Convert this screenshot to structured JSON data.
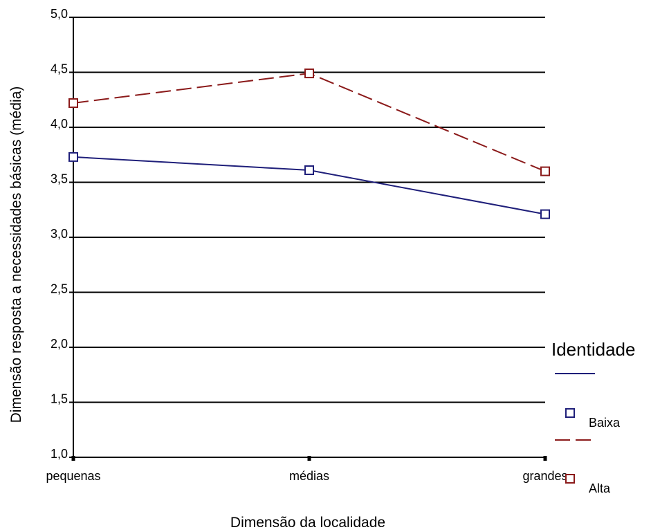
{
  "chart_data": {
    "type": "line",
    "xlabel": "Dimensão da localidade",
    "ylabel": "Dimensão resposta a necessidades básicas (média)",
    "categories": [
      "pequenas",
      "médias",
      "grandes"
    ],
    "ylim": [
      1.0,
      5.0
    ],
    "yticks": [
      1.0,
      1.5,
      2.0,
      2.5,
      3.0,
      3.5,
      4.0,
      4.5,
      5.0
    ],
    "ytick_labels": [
      "1,0",
      "1,5",
      "2,0",
      "2,5",
      "3,0",
      "3,5",
      "4,0",
      "4,5",
      "5,0"
    ],
    "grid": true,
    "legend": {
      "title": "Identidade",
      "placement": "right"
    },
    "series": [
      {
        "name": "Baixa",
        "values": [
          3.73,
          3.61,
          3.21
        ],
        "color": "#1f1f7a",
        "dash": "solid",
        "marker": "square"
      },
      {
        "name": "Alta",
        "values": [
          4.22,
          4.49,
          3.6
        ],
        "color": "#8b1a1a",
        "dash": "dashed",
        "marker": "square"
      }
    ]
  }
}
